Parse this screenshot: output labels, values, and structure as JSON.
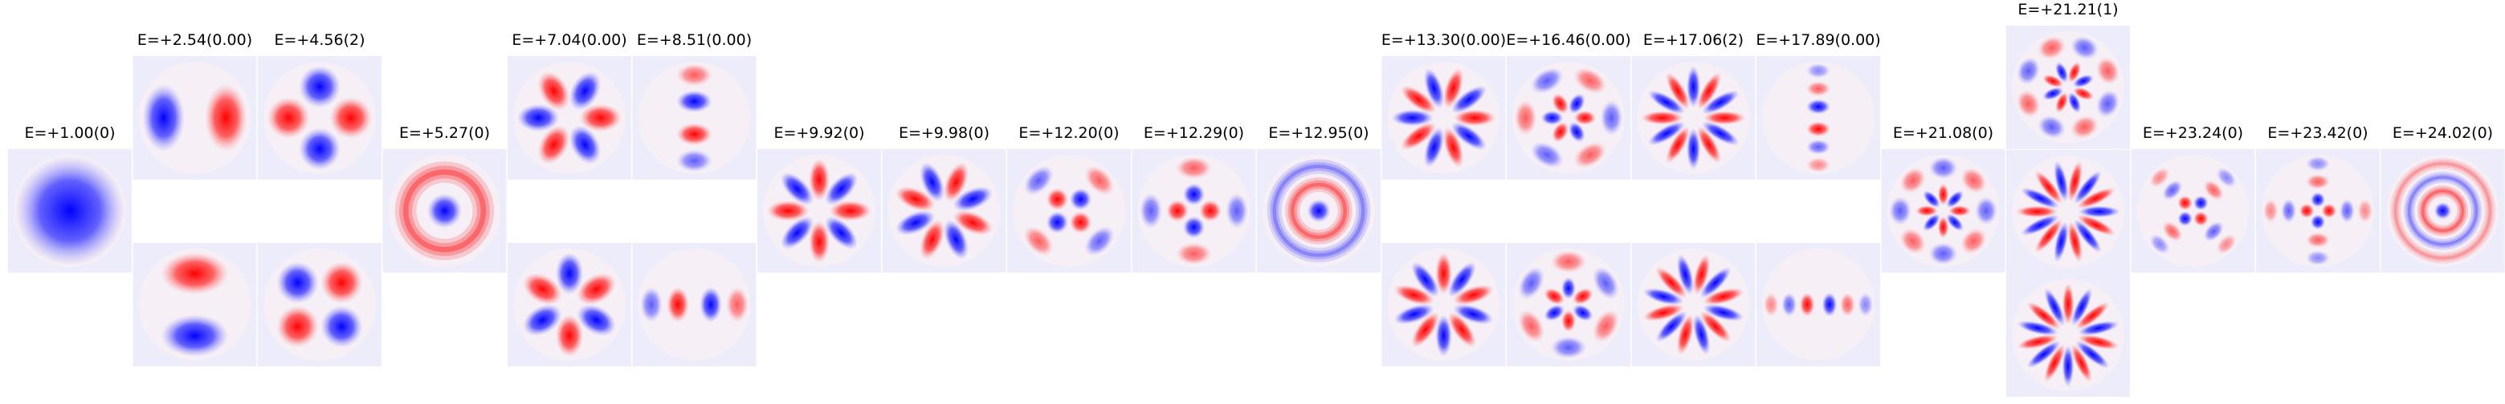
{
  "panels": [
    {
      "title": "E=+1.00(0)"
    },
    {
      "title": "E=+2.54(0.00)"
    },
    {
      "title": "E=+4.56(2)"
    },
    {
      "title": "E=+5.27(0)"
    },
    {
      "title": "E=+7.04(0.00)"
    },
    {
      "title": "E=+8.51(0.00)"
    },
    {
      "title": "E=+9.92(0)"
    },
    {
      "title": "E=+9.98(0)"
    },
    {
      "title": "E=+12.20(0)"
    },
    {
      "title": "E=+12.29(0)"
    },
    {
      "title": "E=+12.95(0)"
    },
    {
      "title": "E=+13.30(0.00)"
    },
    {
      "title": "E=+16.46(0.00)"
    },
    {
      "title": "E=+17.06(2)"
    },
    {
      "title": "E=+17.89(0.00)"
    },
    {
      "title": "E=+21.08(0)"
    },
    {
      "title": "E=+21.21(1)"
    },
    {
      "title": "E=+23.24(0)"
    },
    {
      "title": "E=+23.42(0)"
    },
    {
      "title": "E=+24.02(0)"
    }
  ]
}
